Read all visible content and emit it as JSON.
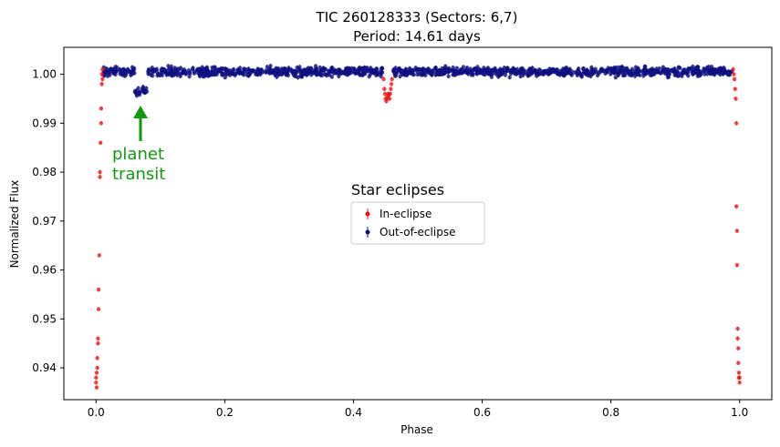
{
  "chart_data": {
    "type": "scatter",
    "title": "TIC 260128333 (Sectors: 6,7)",
    "subtitle": "Period: 14.61 days",
    "xlabel": "Phase",
    "ylabel": "Normalized Flux",
    "xlim": [
      -0.05,
      1.05
    ],
    "ylim": [
      0.9335,
      1.0055
    ],
    "x_ticks": [
      0.0,
      0.2,
      0.4,
      0.6,
      0.8,
      1.0
    ],
    "x_tick_labels": [
      "0.0",
      "0.2",
      "0.4",
      "0.6",
      "0.8",
      "1.0"
    ],
    "y_ticks": [
      0.94,
      0.95,
      0.96,
      0.97,
      0.98,
      0.99,
      1.0
    ],
    "y_tick_labels": [
      "0.94",
      "0.95",
      "0.96",
      "0.97",
      "0.98",
      "0.99",
      "1.00"
    ],
    "grid": false,
    "legend": {
      "title": "Star eclipses",
      "placement": "center",
      "entries": [
        "In-eclipse",
        "Out-of-eclipse"
      ]
    },
    "colors": {
      "in_eclipse": "#ee1111",
      "out_of_eclipse": "#101080",
      "annotation": "#119911"
    },
    "annotation": {
      "text_line1": "planet",
      "text_line2": "transit",
      "x": 0.07,
      "y": 0.9965,
      "label_x": 0.025,
      "label_y": 0.98
    },
    "series": [
      {
        "name": "In-eclipse",
        "color": "#ee1111",
        "points": [
          [
            0.0,
            0.937
          ],
          [
            0.0,
            0.938
          ],
          [
            0.001,
            0.936
          ],
          [
            0.001,
            0.939
          ],
          [
            0.002,
            0.94
          ],
          [
            0.002,
            0.942
          ],
          [
            0.003,
            0.945
          ],
          [
            0.003,
            0.946
          ],
          [
            0.004,
            0.952
          ],
          [
            0.004,
            0.956
          ],
          [
            0.005,
            0.963
          ],
          [
            0.006,
            0.979
          ],
          [
            0.006,
            0.98
          ],
          [
            0.007,
            0.986
          ],
          [
            0.008,
            0.99
          ],
          [
            0.008,
            0.993
          ],
          [
            0.009,
            0.998
          ],
          [
            0.009,
            1.0
          ],
          [
            0.01,
            1.001
          ],
          [
            0.01,
            0.999
          ],
          [
            0.447,
            0.999
          ],
          [
            0.448,
            0.997
          ],
          [
            0.449,
            0.996
          ],
          [
            0.45,
            0.995
          ],
          [
            0.451,
            0.9945
          ],
          [
            0.452,
            0.995
          ],
          [
            0.453,
            0.9955
          ],
          [
            0.454,
            0.996
          ],
          [
            0.455,
            0.9958
          ],
          [
            0.456,
            0.995
          ],
          [
            0.457,
            0.996
          ],
          [
            0.458,
            0.997
          ],
          [
            0.459,
            0.998
          ],
          [
            0.46,
            0.999
          ],
          [
            0.99,
            1.001
          ],
          [
            0.991,
            1.0
          ],
          [
            0.992,
            0.999
          ],
          [
            0.993,
            0.997
          ],
          [
            0.994,
            0.995
          ],
          [
            0.995,
            0.99
          ],
          [
            0.995,
            0.973
          ],
          [
            0.996,
            0.968
          ],
          [
            0.996,
            0.961
          ],
          [
            0.997,
            0.948
          ],
          [
            0.997,
            0.946
          ],
          [
            0.998,
            0.944
          ],
          [
            0.998,
            0.941
          ],
          [
            0.999,
            0.939
          ],
          [
            0.999,
            0.938
          ],
          [
            1.0,
            0.938
          ],
          [
            1.0,
            0.937
          ]
        ]
      },
      {
        "name": "Out-of-eclipse",
        "color": "#101080",
        "x_range": [
          0.012,
          0.988
        ],
        "exclude_x": [
          0.445,
          0.462
        ],
        "baseline": 1.0005,
        "scatter": 0.0009,
        "dip": {
          "x_range": [
            0.06,
            0.08
          ],
          "flux": 0.9965
        }
      }
    ]
  }
}
